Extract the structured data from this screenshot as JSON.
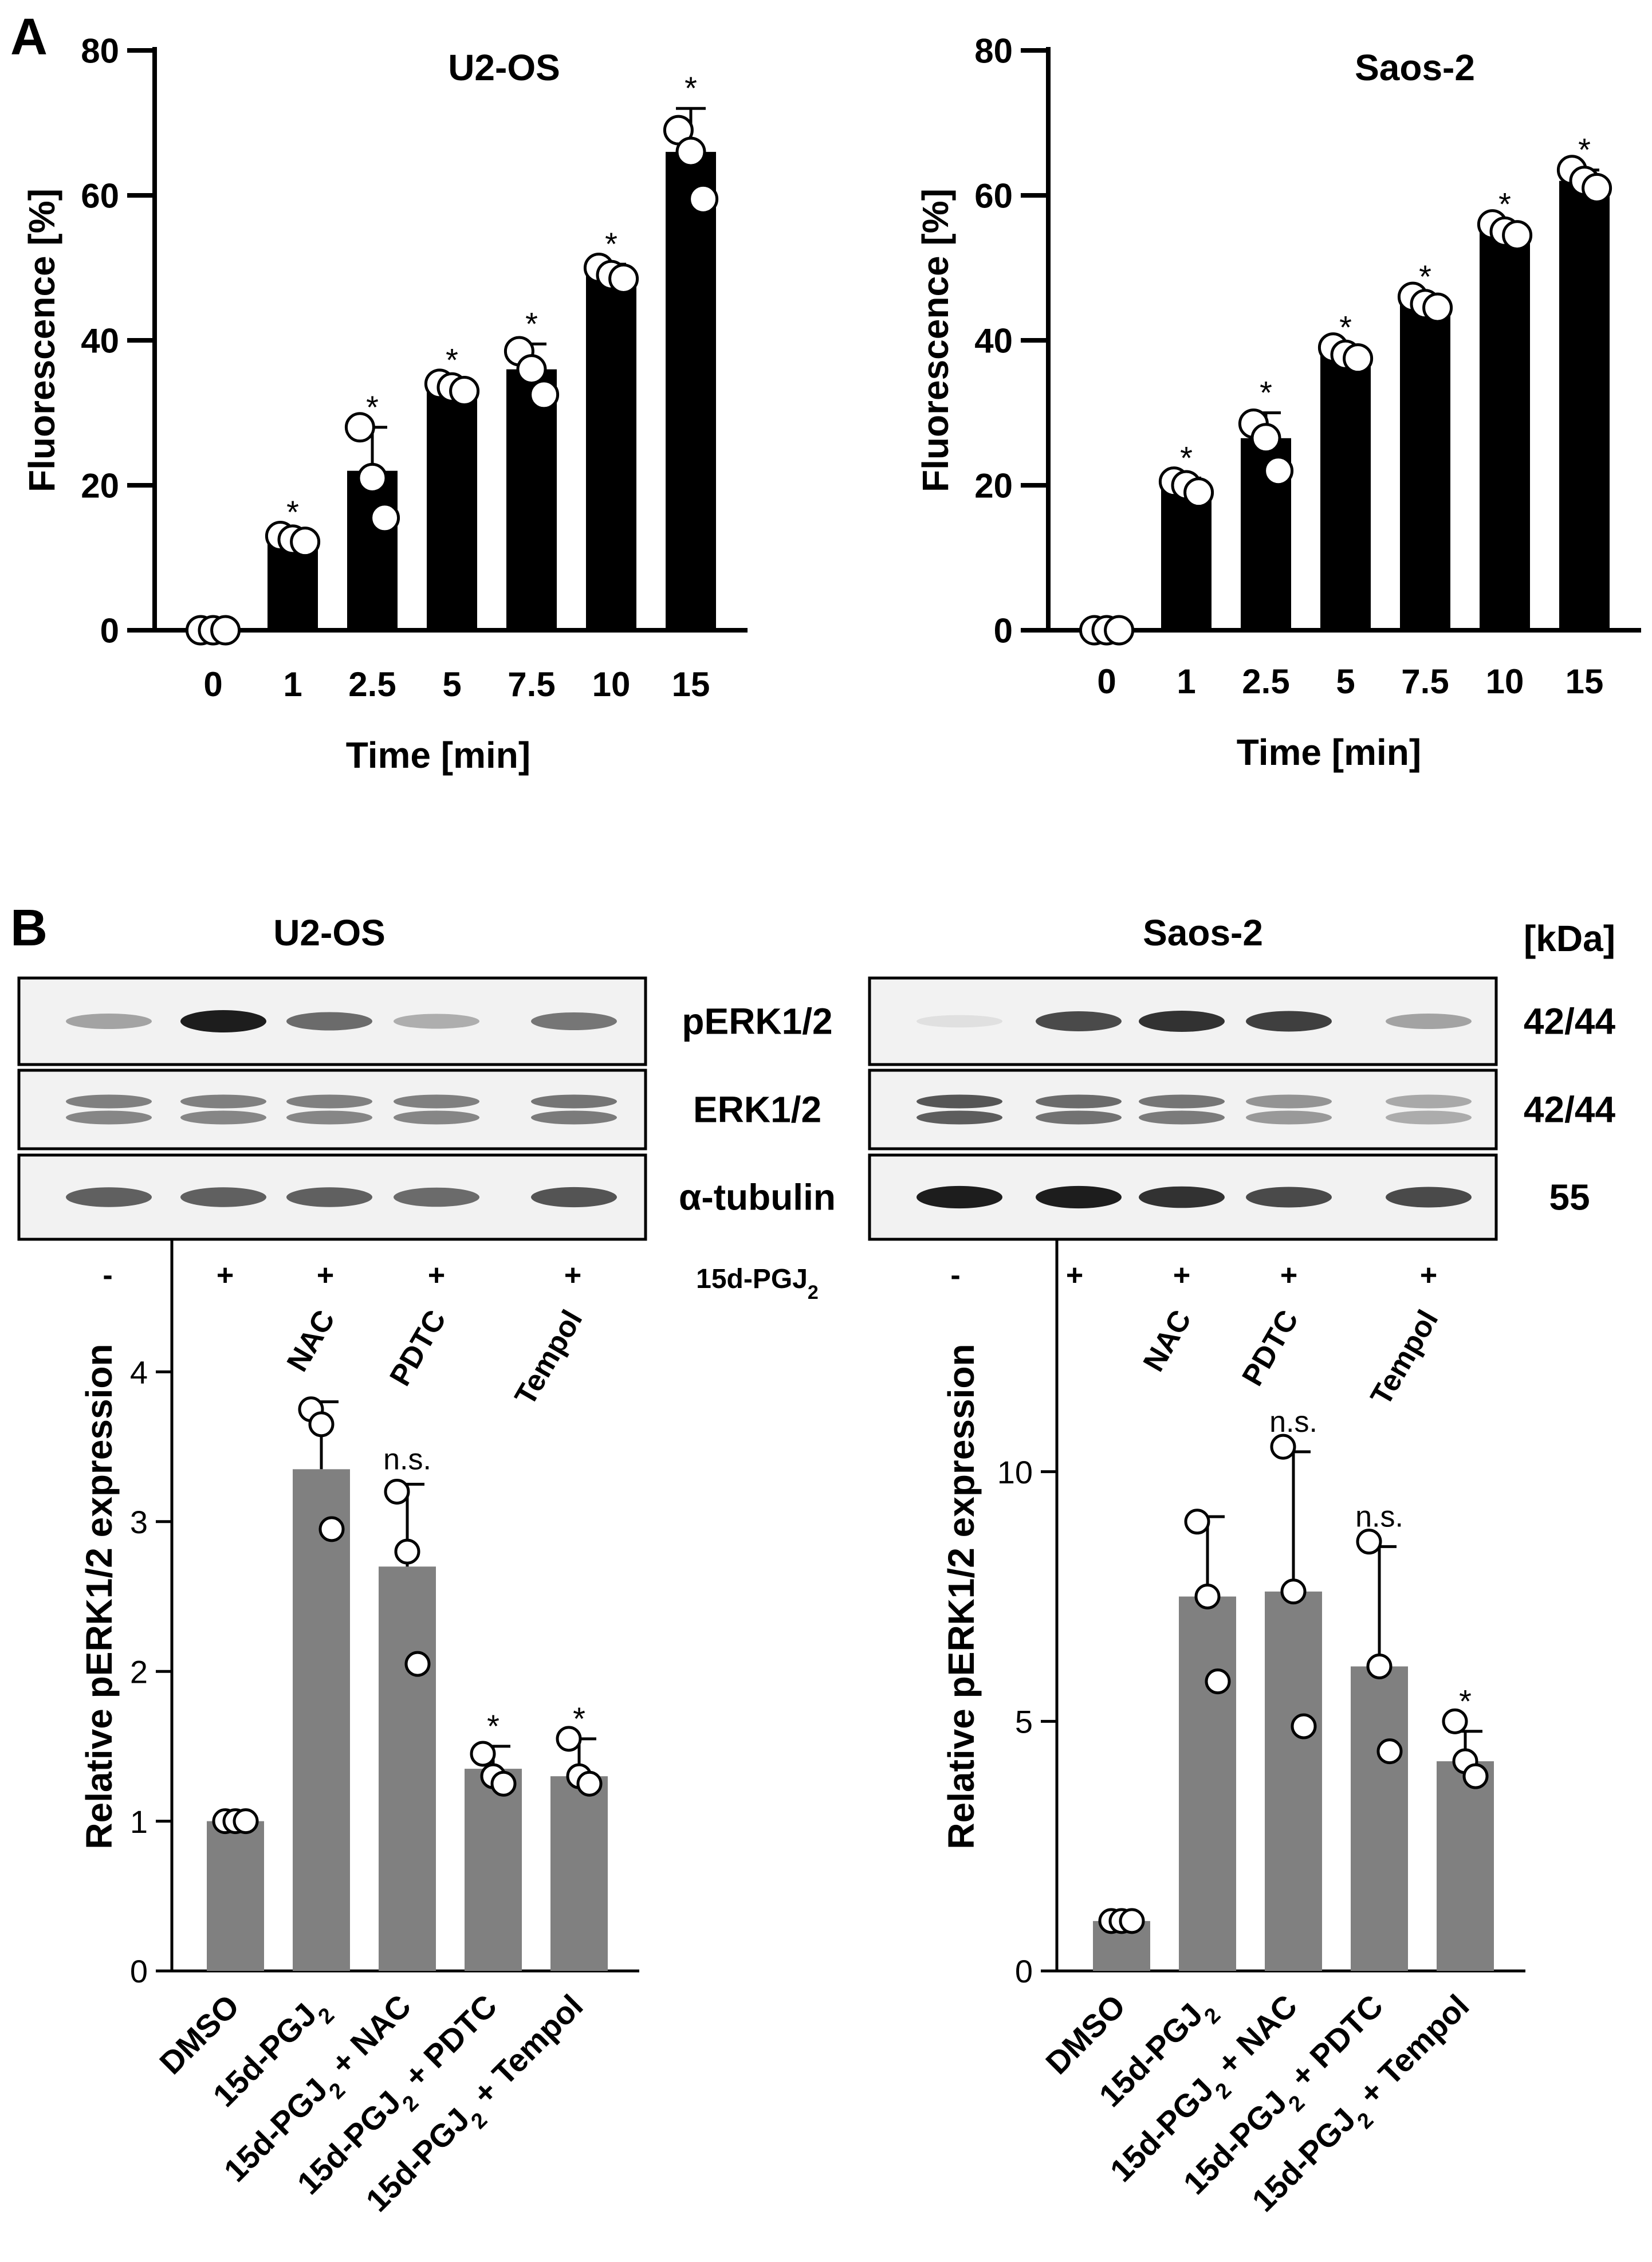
{
  "panel_letters": {
    "a": "A",
    "b": "B"
  },
  "chart_data": [
    {
      "id": "u2os_fluor",
      "type": "bar",
      "title": "U2-OS",
      "xlabel": "Time  [min]",
      "ylabel": "Fluorescence [%]",
      "ylim": [
        0,
        80
      ],
      "yticks": [
        0,
        20,
        40,
        60,
        80
      ],
      "categories": [
        "0",
        "1",
        "2.5",
        "5",
        "7.5",
        "10",
        "15"
      ],
      "values": [
        0,
        12.5,
        22,
        33.5,
        36,
        49.5,
        66
      ],
      "errors": [
        0,
        1,
        6,
        1,
        3.5,
        1,
        6
      ],
      "points": [
        [
          0,
          0,
          0
        ],
        [
          13,
          12.5,
          12.2
        ],
        [
          28,
          21,
          15.5
        ],
        [
          34,
          33.5,
          33
        ],
        [
          38.5,
          36,
          32.5
        ],
        [
          50,
          49,
          48.5
        ],
        [
          69,
          66,
          59.5
        ]
      ],
      "significance": [
        "",
        "*",
        "*",
        "*",
        "*",
        "*",
        "*"
      ],
      "bar_color": "#000000"
    },
    {
      "id": "saos2_fluor",
      "type": "bar",
      "title": "Saos-2",
      "xlabel": "Time  [min]",
      "ylabel": "Fluorescence [%]",
      "ylim": [
        0,
        80
      ],
      "yticks": [
        0,
        20,
        40,
        60,
        80
      ],
      "categories": [
        "0",
        "1",
        "2.5",
        "5",
        "7.5",
        "10",
        "15"
      ],
      "values": [
        0,
        20,
        26.5,
        38,
        45,
        55,
        62
      ],
      "errors": [
        0,
        1,
        3.5,
        1,
        1,
        1,
        1.5
      ],
      "points": [
        [
          0,
          0,
          0
        ],
        [
          20.5,
          20,
          19
        ],
        [
          28.5,
          26.5,
          22
        ],
        [
          39,
          38,
          37.5
        ],
        [
          46,
          45,
          44.5
        ],
        [
          56,
          55,
          54.5
        ],
        [
          63.5,
          62,
          61
        ]
      ],
      "significance": [
        "",
        "*",
        "*",
        "*",
        "*",
        "*",
        "*"
      ],
      "bar_color": "#000000"
    },
    {
      "id": "u2os_perk",
      "type": "bar",
      "ylabel": "Relative pERK1/2 expression",
      "ylim": [
        0,
        5
      ],
      "yticks": [
        0,
        1,
        2,
        3,
        4,
        5
      ],
      "categories": [
        [
          "DMSO"
        ],
        [
          "15d-PGJ",
          "2",
          ""
        ],
        [
          "15d-PGJ",
          "2",
          " + NAC"
        ],
        [
          "15d-PGJ",
          "2",
          " + PDTC"
        ],
        [
          "15d-PGJ",
          "2",
          " + Tempol"
        ]
      ],
      "values": [
        1,
        3.35,
        2.7,
        1.35,
        1.3
      ],
      "errors": [
        0,
        0.45,
        0.55,
        0.15,
        0.25
      ],
      "points": [
        [
          1,
          1,
          1
        ],
        [
          3.75,
          3.65,
          2.95
        ],
        [
          3.2,
          2.8,
          2.05
        ],
        [
          1.45,
          1.3,
          1.25
        ],
        [
          1.55,
          1.3,
          1.25
        ]
      ],
      "significance": [
        "",
        "",
        "n.s.",
        "*",
        "*"
      ],
      "bar_color": "#808080"
    },
    {
      "id": "saos2_perk",
      "type": "bar",
      "ylabel": "Relative pERK1/2 expression",
      "ylim": [
        0,
        15
      ],
      "yticks": [
        0,
        5,
        10,
        15
      ],
      "categories": [
        [
          "DMSO"
        ],
        [
          "15d-PGJ",
          "2",
          ""
        ],
        [
          "15d-PGJ",
          "2",
          " + NAC"
        ],
        [
          "15d-PGJ",
          "2",
          " + PDTC"
        ],
        [
          "15d-PGJ",
          "2",
          " + Tempol"
        ]
      ],
      "values": [
        1,
        7.5,
        7.6,
        6.1,
        4.2
      ],
      "errors": [
        0,
        1.6,
        2.8,
        2.4,
        0.6
      ],
      "points": [
        [
          1,
          1,
          1
        ],
        [
          9,
          7.5,
          5.8
        ],
        [
          10.5,
          7.6,
          4.9
        ],
        [
          8.6,
          6.1,
          4.4
        ],
        [
          5,
          4.2,
          3.9
        ]
      ],
      "significance": [
        "",
        "",
        "n.s.",
        "n.s.",
        "*"
      ],
      "bar_color": "#808080"
    }
  ],
  "blot": {
    "u2os_title": "U2-OS",
    "saos2_title": "Saos-2",
    "kda_header": "[kDa]",
    "rows": [
      {
        "label": "pERK1/2",
        "kda": "42/44"
      },
      {
        "label": "ERK1/2",
        "kda": "42/44"
      },
      {
        "label": "α-tubulin",
        "kda": "55"
      }
    ],
    "treatment_signs": [
      "-",
      "+",
      "+",
      "+",
      "+"
    ],
    "treatment_label_main": "15d-PGJ",
    "treatment_label_sub": "2",
    "inhibitors": [
      "",
      "",
      "NAC",
      "PDTC",
      "Tempol"
    ],
    "band_intensity": {
      "u2os": {
        "pERK1/2": [
          0.35,
          0.95,
          0.6,
          0.3,
          0.55
        ],
        "ERK1/2": [
          0.55,
          0.55,
          0.55,
          0.55,
          0.6
        ],
        "α-tubulin": [
          0.65,
          0.65,
          0.65,
          0.6,
          0.7
        ]
      },
      "saos2": {
        "pERK1/2": [
          0.08,
          0.75,
          0.85,
          0.8,
          0.35
        ],
        "ERK1/2": [
          0.75,
          0.65,
          0.6,
          0.45,
          0.35
        ],
        "α-tubulin": [
          0.95,
          0.95,
          0.85,
          0.75,
          0.75
        ]
      }
    }
  }
}
